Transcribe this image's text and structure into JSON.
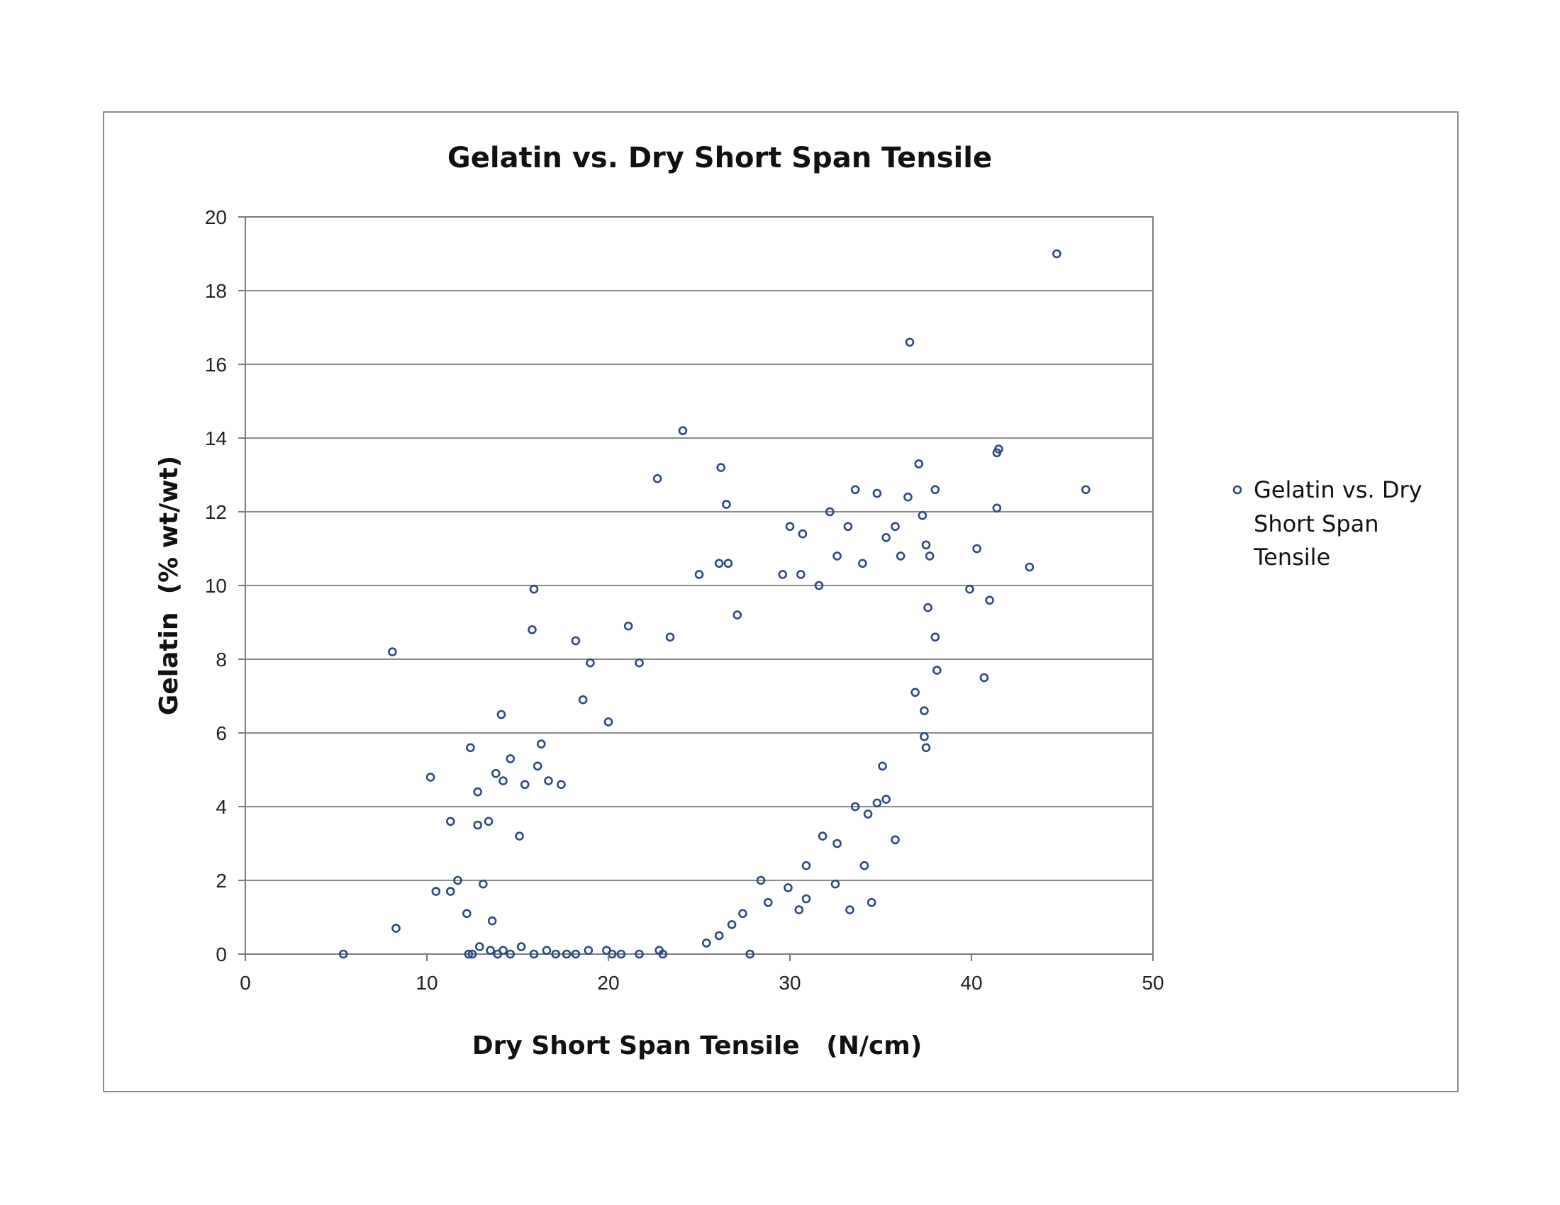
{
  "chart_data": {
    "type": "scatter",
    "title": "Gelatin vs. Dry Short Span Tensile",
    "xlabel": "Dry Short Span Tensile   (N/cm)",
    "ylabel": "Gelatin  (% wt/wt)",
    "xlim": [
      0,
      50
    ],
    "ylim": [
      0,
      20
    ],
    "x_ticks": [
      0,
      10,
      20,
      30,
      40,
      50
    ],
    "y_ticks": [
      0,
      2,
      4,
      6,
      8,
      10,
      12,
      14,
      16,
      18,
      20
    ],
    "grid": "horizontal",
    "legend": "right",
    "marker": "hollow-circle",
    "marker_color": "#2b4a7e",
    "series": [
      {
        "name": "Gelatin vs. Dry Short Span Tensile",
        "legend_lines": [
          "Gelatin vs. Dry",
          "Short Span",
          "Tensile"
        ],
        "points": [
          [
            5.4,
            0.0
          ],
          [
            8.1,
            8.2
          ],
          [
            8.3,
            0.7
          ],
          [
            10.2,
            4.8
          ],
          [
            10.5,
            1.7
          ],
          [
            11.3,
            1.7
          ],
          [
            11.3,
            3.6
          ],
          [
            11.7,
            2.0
          ],
          [
            12.2,
            1.1
          ],
          [
            12.4,
            5.6
          ],
          [
            12.5,
            0.0
          ],
          [
            12.8,
            4.4
          ],
          [
            12.8,
            3.5
          ],
          [
            13.1,
            1.9
          ],
          [
            13.4,
            3.6
          ],
          [
            13.6,
            0.9
          ],
          [
            13.8,
            4.9
          ],
          [
            14.1,
            6.5
          ],
          [
            14.2,
            4.7
          ],
          [
            14.6,
            5.3
          ],
          [
            15.1,
            3.2
          ],
          [
            15.4,
            4.6
          ],
          [
            15.9,
            9.9
          ],
          [
            15.8,
            8.8
          ],
          [
            16.1,
            5.1
          ],
          [
            16.3,
            5.7
          ],
          [
            16.7,
            4.7
          ],
          [
            17.4,
            4.6
          ],
          [
            18.2,
            8.5
          ],
          [
            18.6,
            6.9
          ],
          [
            19.0,
            7.9
          ],
          [
            20.0,
            6.3
          ],
          [
            21.1,
            8.9
          ],
          [
            21.7,
            7.9
          ],
          [
            22.7,
            12.9
          ],
          [
            23.4,
            8.6
          ],
          [
            24.1,
            14.2
          ],
          [
            25.0,
            10.3
          ],
          [
            26.1,
            10.6
          ],
          [
            26.2,
            13.2
          ],
          [
            26.5,
            12.2
          ],
          [
            26.6,
            10.6
          ],
          [
            27.1,
            9.2
          ],
          [
            27.8,
            0.0
          ],
          [
            29.6,
            10.3
          ],
          [
            30.0,
            11.6
          ],
          [
            30.7,
            11.4
          ],
          [
            30.6,
            10.3
          ],
          [
            31.6,
            10.0
          ],
          [
            32.2,
            12.0
          ],
          [
            32.6,
            10.8
          ],
          [
            33.2,
            11.6
          ],
          [
            33.6,
            12.6
          ],
          [
            34.0,
            10.6
          ],
          [
            34.8,
            12.5
          ],
          [
            35.3,
            11.3
          ],
          [
            35.8,
            11.6
          ],
          [
            36.1,
            10.8
          ],
          [
            36.6,
            16.6
          ],
          [
            36.5,
            12.4
          ],
          [
            37.1,
            13.3
          ],
          [
            37.3,
            11.9
          ],
          [
            37.5,
            11.1
          ],
          [
            37.6,
            9.4
          ],
          [
            38.0,
            12.6
          ],
          [
            38.0,
            8.6
          ],
          [
            38.1,
            7.7
          ],
          [
            37.7,
            10.8
          ],
          [
            39.9,
            9.9
          ],
          [
            40.3,
            11.0
          ],
          [
            40.7,
            7.5
          ],
          [
            41.0,
            9.6
          ],
          [
            41.4,
            13.6
          ],
          [
            41.5,
            13.7
          ],
          [
            41.4,
            12.1
          ],
          [
            43.2,
            10.5
          ],
          [
            44.7,
            19.0
          ],
          [
            46.3,
            12.6
          ],
          [
            37.4,
            6.6
          ],
          [
            37.5,
            5.6
          ],
          [
            37.4,
            5.9
          ],
          [
            36.9,
            7.1
          ],
          [
            35.8,
            3.1
          ],
          [
            35.3,
            4.2
          ],
          [
            34.5,
            1.4
          ],
          [
            34.8,
            4.1
          ],
          [
            34.1,
            2.4
          ],
          [
            34.3,
            3.8
          ],
          [
            33.3,
            1.2
          ],
          [
            32.6,
            3.0
          ],
          [
            32.5,
            1.9
          ],
          [
            33.6,
            4.0
          ],
          [
            35.1,
            5.1
          ],
          [
            31.8,
            3.2
          ],
          [
            30.9,
            1.5
          ],
          [
            30.9,
            2.4
          ],
          [
            30.5,
            1.2
          ],
          [
            29.9,
            1.8
          ],
          [
            28.8,
            1.4
          ],
          [
            28.4,
            2.0
          ],
          [
            27.4,
            1.1
          ],
          [
            26.8,
            0.8
          ],
          [
            26.1,
            0.5
          ],
          [
            25.4,
            0.3
          ],
          [
            23.0,
            0.0
          ],
          [
            22.8,
            0.1
          ],
          [
            21.7,
            0.0
          ],
          [
            20.7,
            0.0
          ],
          [
            20.2,
            0.0
          ],
          [
            19.9,
            0.1
          ],
          [
            18.9,
            0.1
          ],
          [
            18.2,
            0.0
          ],
          [
            17.7,
            0.0
          ],
          [
            17.1,
            0.0
          ],
          [
            16.6,
            0.1
          ],
          [
            15.9,
            0.0
          ],
          [
            15.2,
            0.2
          ],
          [
            14.6,
            0.0
          ],
          [
            14.2,
            0.1
          ],
          [
            13.9,
            0.0
          ],
          [
            13.5,
            0.1
          ],
          [
            12.9,
            0.2
          ],
          [
            12.3,
            0.0
          ]
        ]
      }
    ]
  }
}
